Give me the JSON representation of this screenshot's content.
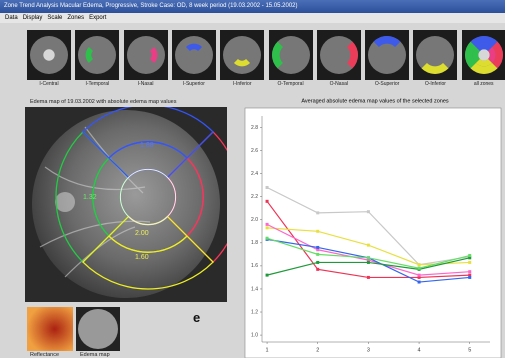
{
  "window": {
    "title": "Zone Trend Analysis Macular Edema, Progressive, Stroke Case: OD, 8 week period (19.03.2002 - 15.05.2002)",
    "menu": [
      "Data",
      "Display",
      "Scale",
      "Zones",
      "Export"
    ]
  },
  "zones": [
    {
      "label": "I-Central",
      "color": "#e8e8e8"
    },
    {
      "label": "I-Temporal",
      "color": "#22cc44"
    },
    {
      "label": "I-Nasal",
      "color": "#ff3388"
    },
    {
      "label": "I-Superior",
      "color": "#3355ff"
    },
    {
      "label": "I-Inferior",
      "color": "#eeee22"
    },
    {
      "label": "O-Temporal",
      "color": "#22cc44"
    },
    {
      "label": "O-Nasal",
      "color": "#ff3355"
    },
    {
      "label": "O-Superior",
      "color": "#3355ff"
    },
    {
      "label": "O-Inferior",
      "color": "#eeee22"
    },
    {
      "label": "all zones"
    }
  ],
  "edema_map": {
    "caption": "Edema map of 19.03.2002 with absolute edema map values",
    "zone_values": [
      "1.88",
      "1.32",
      "2.00",
      "1.60"
    ]
  },
  "panel_letter": "e",
  "bottom_images": [
    "Reflectance",
    "Edema map"
  ],
  "chart_data": {
    "type": "line",
    "title": "Averaged absolute edema map values of the selected zones",
    "x": [
      1,
      2,
      3,
      4,
      5
    ],
    "xlim": [
      0.9,
      5.4
    ],
    "xticks": [
      1,
      2,
      3,
      4,
      5
    ],
    "ylim": [
      0.94,
      2.9
    ],
    "yticks": [
      {
        "value": 1.0,
        "label": "1.0"
      },
      {
        "value": 1.2,
        "label": "1.2"
      },
      {
        "value": 1.4,
        "label": "1.4"
      },
      {
        "value": 1.6,
        "label": "1.6"
      },
      {
        "value": 1.8,
        "label": "1.8"
      },
      {
        "value": 2.0,
        "label": "2.0"
      },
      {
        "value": 2.2,
        "label": "2.2"
      },
      {
        "value": 2.4,
        "label": "2.4"
      },
      {
        "value": 2.6,
        "label": "2.6"
      },
      {
        "value": 2.8,
        "label": "2.8"
      }
    ],
    "series": [
      {
        "color": "#c8c8c8",
        "values": [
          2.28,
          2.06,
          2.07,
          1.61,
          1.68
        ]
      },
      {
        "color": "#ee3355",
        "values": [
          2.16,
          1.57,
          1.5,
          1.5,
          1.52
        ]
      },
      {
        "color": "#e8e040",
        "values": [
          1.93,
          1.9,
          1.78,
          1.61,
          1.63
        ]
      },
      {
        "color": "#ff66cc",
        "values": [
          1.96,
          1.74,
          1.65,
          1.52,
          1.55
        ]
      },
      {
        "color": "#3366ee",
        "values": [
          1.83,
          1.76,
          1.67,
          1.46,
          1.5
        ]
      },
      {
        "color": "#1f9a3a",
        "values": [
          1.52,
          1.63,
          1.63,
          1.57,
          1.67
        ]
      },
      {
        "color": "#66dd66",
        "values": [
          1.84,
          1.7,
          1.67,
          1.58,
          1.69
        ]
      }
    ]
  }
}
